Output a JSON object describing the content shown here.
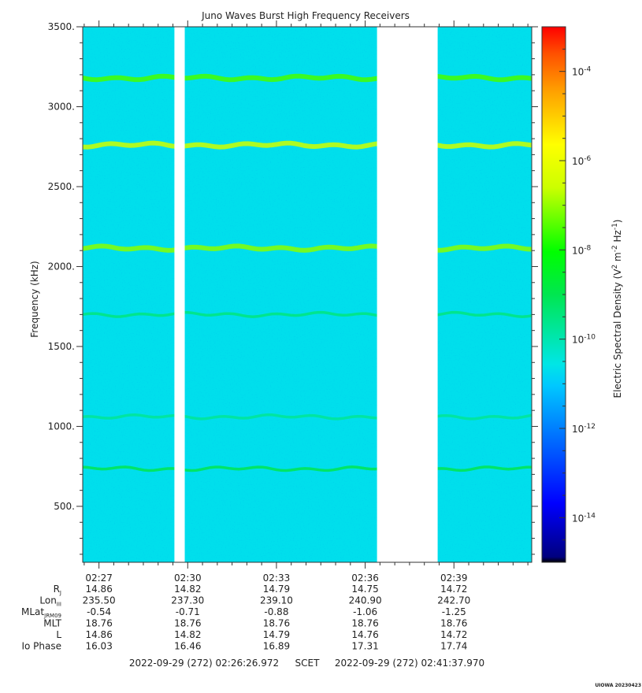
{
  "chart_data": {
    "type": "heatmap",
    "title": "Juno Waves Burst High Frequency Receivers",
    "ylabel": "Frequency (kHz)",
    "ylim": [
      150,
      3500
    ],
    "yticks": [
      {
        "value": 500,
        "label": "500."
      },
      {
        "value": 1000,
        "label": "1000."
      },
      {
        "value": 1500,
        "label": "1500."
      },
      {
        "value": 2000,
        "label": "2000."
      },
      {
        "value": 2500,
        "label": "2500."
      },
      {
        "value": 3000,
        "label": "3000."
      },
      {
        "value": 3500,
        "label": "3500."
      }
    ],
    "xlim_minutes": [
      26.45,
      41.63
    ],
    "xticks": [
      {
        "minute": 27,
        "label": "02:27"
      },
      {
        "minute": 30,
        "label": "02:30"
      },
      {
        "minute": 33,
        "label": "02:33"
      },
      {
        "minute": 36,
        "label": "02:36"
      },
      {
        "minute": 39,
        "label": "02:39"
      }
    ],
    "data_gaps_minutes": [
      [
        29.55,
        29.9
      ],
      [
        36.4,
        38.45
      ]
    ],
    "emission_bands_khz": [
      {
        "freq": 3180,
        "level": 0.62
      },
      {
        "freq": 2760,
        "level": 0.7
      },
      {
        "freq": 2115,
        "level": 0.66
      },
      {
        "freq": 1700,
        "level": 0.46
      },
      {
        "freq": 1060,
        "level": 0.44
      },
      {
        "freq": 735,
        "level": 0.5
      }
    ],
    "background_level": 0.36,
    "colorbar": {
      "label": "Electric Spectral Density (V",
      "label_sup1": "2",
      "label_mid": " m",
      "label_sup2": "-2",
      "label_mid2": " Hz",
      "label_sup3": "-1",
      "label_end": ")",
      "range_exp": [
        -15,
        -3
      ],
      "ticks": [
        {
          "base": "10",
          "exp": "-4",
          "value": -4
        },
        {
          "base": "10",
          "exp": "-6",
          "value": -6
        },
        {
          "base": "10",
          "exp": "-8",
          "value": -8
        },
        {
          "base": "10",
          "exp": "-10",
          "value": -10
        },
        {
          "base": "10",
          "exp": "-12",
          "value": -12
        },
        {
          "base": "10",
          "exp": "-14",
          "value": -14
        }
      ]
    },
    "ephemeris": {
      "rows": [
        {
          "label": "R",
          "sub": "J",
          "values": [
            "14.86",
            "14.82",
            "14.79",
            "14.75",
            "14.72"
          ]
        },
        {
          "label": "Lon",
          "sub": "III",
          "values": [
            "235.50",
            "237.30",
            "239.10",
            "240.90",
            "242.70"
          ]
        },
        {
          "label": "MLat",
          "sub": "JRM09",
          "values": [
            "-0.54",
            "-0.71",
            "-0.88",
            "-1.06",
            "-1.25"
          ]
        },
        {
          "label": "MLT",
          "sub": "",
          "values": [
            "18.76",
            "18.76",
            "18.76",
            "18.76",
            "18.76"
          ]
        },
        {
          "label": "L",
          "sub": "",
          "values": [
            "14.86",
            "14.82",
            "14.79",
            "14.76",
            "14.72"
          ]
        },
        {
          "label": "Io Phase",
          "sub": "",
          "values": [
            "16.03",
            "16.46",
            "16.89",
            "17.31",
            "17.74"
          ]
        }
      ]
    },
    "time_range": {
      "start": "2022-09-29 (272) 02:26:26.972",
      "middle": "SCET",
      "end": "2022-09-29 (272) 02:41:37.970"
    },
    "footer": "UIOWA 20230423"
  }
}
